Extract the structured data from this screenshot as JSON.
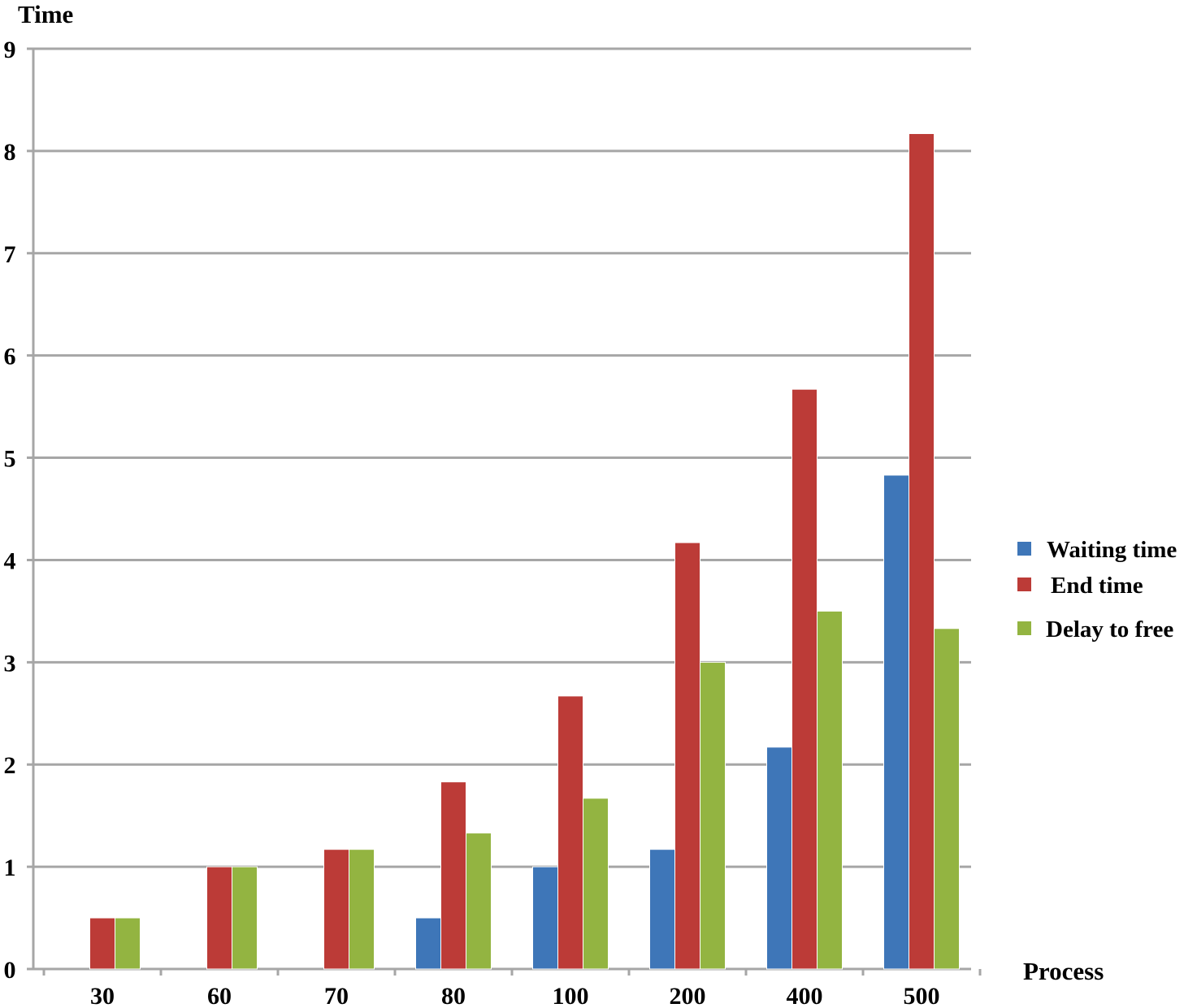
{
  "chart_data": {
    "type": "bar",
    "title": "",
    "ylabel": "Time",
    "xlabel": "Process",
    "ylim": [
      0,
      9
    ],
    "yticks": [
      0,
      1,
      2,
      3,
      4,
      5,
      6,
      7,
      8,
      9
    ],
    "grid": true,
    "legend_position": "right",
    "categories": [
      "30",
      "60",
      "70",
      "80",
      "100",
      "200",
      "400",
      "500"
    ],
    "series": [
      {
        "name": "Waiting time",
        "color": "#3E76B8",
        "values": [
          0,
          0,
          0,
          0.5,
          1.0,
          1.17,
          2.17,
          4.83
        ]
      },
      {
        "name": "End time",
        "color": "#BC3B37",
        "values": [
          0.5,
          1.0,
          1.17,
          1.83,
          2.67,
          4.17,
          5.67,
          8.17
        ]
      },
      {
        "name": "Delay to free",
        "color": "#93B441",
        "values": [
          0.5,
          1.0,
          1.17,
          1.33,
          1.67,
          3.0,
          3.5,
          3.33
        ]
      }
    ]
  }
}
